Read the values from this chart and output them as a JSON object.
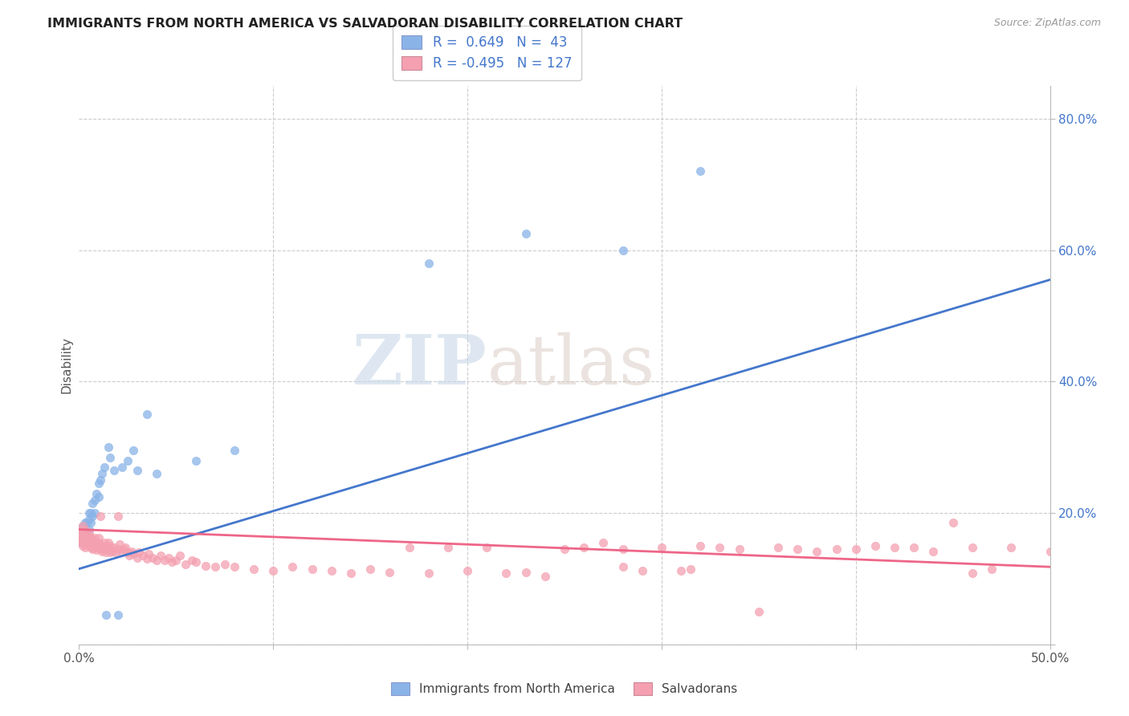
{
  "title": "IMMIGRANTS FROM NORTH AMERICA VS SALVADORAN DISABILITY CORRELATION CHART",
  "source": "Source: ZipAtlas.com",
  "ylabel_label": "Disability",
  "x_min": 0.0,
  "x_max": 0.5,
  "y_min": 0.0,
  "y_max": 0.85,
  "blue_R": 0.649,
  "blue_N": 43,
  "pink_R": -0.495,
  "pink_N": 127,
  "blue_color": "#8ab4e8",
  "pink_color": "#f4a0b0",
  "blue_line_color": "#4477cc",
  "pink_line_color": "#ee6688",
  "watermark_zip": "ZIP",
  "watermark_atlas": "atlas",
  "legend_label_blue": "Immigrants from North America",
  "legend_label_pink": "Salvadorans",
  "blue_scatter_x": [
    0.001,
    0.001,
    0.001,
    0.002,
    0.002,
    0.002,
    0.003,
    0.003,
    0.003,
    0.004,
    0.004,
    0.005,
    0.005,
    0.005,
    0.006,
    0.006,
    0.007,
    0.007,
    0.008,
    0.008,
    0.009,
    0.01,
    0.01,
    0.011,
    0.012,
    0.013,
    0.014,
    0.015,
    0.016,
    0.018,
    0.02,
    0.022,
    0.025,
    0.028,
    0.03,
    0.035,
    0.04,
    0.06,
    0.08,
    0.18,
    0.23,
    0.28,
    0.32
  ],
  "blue_scatter_y": [
    0.155,
    0.165,
    0.175,
    0.16,
    0.17,
    0.18,
    0.165,
    0.175,
    0.185,
    0.17,
    0.185,
    0.175,
    0.19,
    0.2,
    0.185,
    0.2,
    0.195,
    0.215,
    0.2,
    0.22,
    0.23,
    0.225,
    0.245,
    0.25,
    0.26,
    0.27,
    0.045,
    0.3,
    0.285,
    0.265,
    0.045,
    0.27,
    0.28,
    0.295,
    0.265,
    0.35,
    0.26,
    0.28,
    0.295,
    0.58,
    0.625,
    0.6,
    0.72
  ],
  "pink_scatter_x": [
    0.001,
    0.001,
    0.001,
    0.001,
    0.001,
    0.002,
    0.002,
    0.002,
    0.002,
    0.002,
    0.002,
    0.003,
    0.003,
    0.003,
    0.003,
    0.003,
    0.004,
    0.004,
    0.004,
    0.004,
    0.005,
    0.005,
    0.005,
    0.005,
    0.006,
    0.006,
    0.006,
    0.007,
    0.007,
    0.007,
    0.008,
    0.008,
    0.008,
    0.009,
    0.009,
    0.01,
    0.01,
    0.01,
    0.011,
    0.011,
    0.012,
    0.012,
    0.013,
    0.013,
    0.014,
    0.014,
    0.015,
    0.015,
    0.016,
    0.016,
    0.017,
    0.018,
    0.019,
    0.02,
    0.02,
    0.021,
    0.022,
    0.023,
    0.024,
    0.025,
    0.026,
    0.027,
    0.028,
    0.03,
    0.031,
    0.033,
    0.035,
    0.036,
    0.038,
    0.04,
    0.042,
    0.044,
    0.046,
    0.048,
    0.05,
    0.052,
    0.055,
    0.058,
    0.06,
    0.065,
    0.07,
    0.075,
    0.08,
    0.09,
    0.1,
    0.11,
    0.12,
    0.13,
    0.14,
    0.15,
    0.16,
    0.18,
    0.2,
    0.22,
    0.24,
    0.26,
    0.28,
    0.3,
    0.32,
    0.34,
    0.36,
    0.38,
    0.4,
    0.42,
    0.44,
    0.46,
    0.25,
    0.29,
    0.31,
    0.35,
    0.5,
    0.48,
    0.47,
    0.41,
    0.45,
    0.39,
    0.37,
    0.27,
    0.33,
    0.43,
    0.46,
    0.17,
    0.19,
    0.21,
    0.23,
    0.28,
    0.315
  ],
  "pink_scatter_y": [
    0.155,
    0.16,
    0.165,
    0.17,
    0.175,
    0.15,
    0.155,
    0.16,
    0.165,
    0.17,
    0.18,
    0.148,
    0.155,
    0.16,
    0.165,
    0.175,
    0.152,
    0.158,
    0.163,
    0.17,
    0.15,
    0.155,
    0.162,
    0.168,
    0.148,
    0.154,
    0.162,
    0.145,
    0.152,
    0.16,
    0.148,
    0.155,
    0.162,
    0.144,
    0.152,
    0.148,
    0.155,
    0.162,
    0.195,
    0.145,
    0.142,
    0.15,
    0.145,
    0.155,
    0.14,
    0.15,
    0.145,
    0.155,
    0.14,
    0.15,
    0.142,
    0.148,
    0.14,
    0.195,
    0.145,
    0.152,
    0.14,
    0.145,
    0.148,
    0.14,
    0.135,
    0.142,
    0.138,
    0.132,
    0.14,
    0.135,
    0.13,
    0.138,
    0.132,
    0.128,
    0.135,
    0.128,
    0.132,
    0.126,
    0.128,
    0.135,
    0.122,
    0.128,
    0.125,
    0.12,
    0.118,
    0.122,
    0.118,
    0.114,
    0.112,
    0.118,
    0.114,
    0.112,
    0.108,
    0.115,
    0.11,
    0.108,
    0.112,
    0.108,
    0.104,
    0.148,
    0.145,
    0.148,
    0.15,
    0.145,
    0.148,
    0.142,
    0.145,
    0.148,
    0.142,
    0.148,
    0.145,
    0.112,
    0.112,
    0.05,
    0.142,
    0.148,
    0.115,
    0.15,
    0.185,
    0.145,
    0.145,
    0.155,
    0.148,
    0.148,
    0.108,
    0.148,
    0.148,
    0.148,
    0.11,
    0.118,
    0.115
  ],
  "blue_line_x0": 0.0,
  "blue_line_x1": 0.5,
  "blue_line_y0": 0.115,
  "blue_line_y1": 0.555,
  "pink_line_x0": 0.0,
  "pink_line_x1": 0.5,
  "pink_line_y0": 0.175,
  "pink_line_y1": 0.118
}
